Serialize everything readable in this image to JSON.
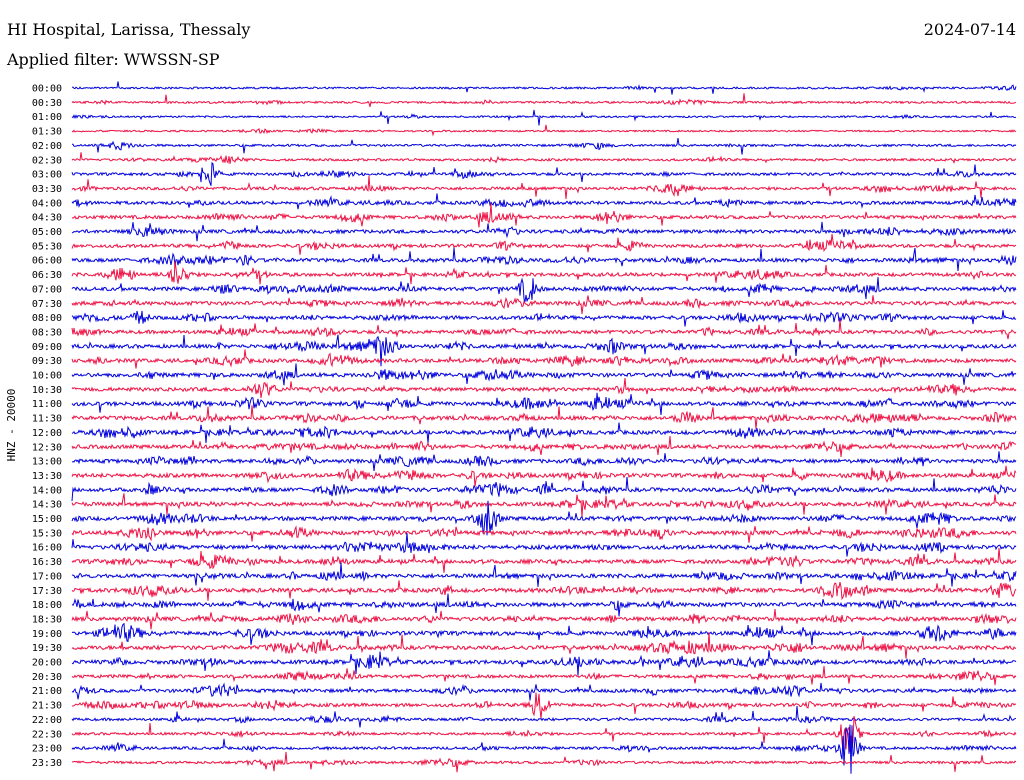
{
  "header": {
    "station": "HI Hospital, Larissa, Thessaly",
    "date": "2024-07-14",
    "filter_line": "Applied filter: WWSSN-SP"
  },
  "chart_data": {
    "type": "line",
    "title": "HI Hospital, Larissa, Thessaly",
    "ylabel": "HNZ - 20000",
    "xlabel": "",
    "trace_labels": [
      "00:00",
      "00:30",
      "01:00",
      "01:30",
      "02:00",
      "02:30",
      "03:00",
      "03:30",
      "04:00",
      "04:30",
      "05:00",
      "05:30",
      "06:00",
      "06:30",
      "07:00",
      "07:30",
      "08:00",
      "08:30",
      "09:00",
      "09:30",
      "10:00",
      "10:30",
      "11:00",
      "11:30",
      "12:00",
      "12:30",
      "13:00",
      "13:30",
      "14:00",
      "14:30",
      "15:00",
      "15:30",
      "16:00",
      "16:30",
      "17:00",
      "17:30",
      "18:00",
      "18:30",
      "19:00",
      "19:30",
      "20:00",
      "20:30",
      "21:00",
      "21:30",
      "22:00",
      "22:30",
      "23:00",
      "23:30"
    ],
    "trace_colors": [
      "#0000dd",
      "#ee1144"
    ],
    "activity_level": [
      0.25,
      0.3,
      0.2,
      0.15,
      0.35,
      0.4,
      0.55,
      0.6,
      0.7,
      0.75,
      0.8,
      0.75,
      0.85,
      0.8,
      0.85,
      0.9,
      0.85,
      0.8,
      0.85,
      0.9,
      0.9,
      0.9,
      0.95,
      0.95,
      0.95,
      0.9,
      0.9,
      0.95,
      0.95,
      0.9,
      0.95,
      1.0,
      1.0,
      0.95,
      0.95,
      1.0,
      1.0,
      0.95,
      0.95,
      0.95,
      0.95,
      0.7,
      0.75,
      0.75,
      0.5,
      0.45,
      0.5,
      0.45
    ],
    "events": [
      {
        "trace": "22:30",
        "x_frac": 0.823,
        "amp": 1.0
      },
      {
        "trace": "23:00",
        "x_frac": 0.823,
        "amp": 1.0
      },
      {
        "trace": "21:30",
        "x_frac": 0.495,
        "amp": 0.6
      },
      {
        "trace": "07:00",
        "x_frac": 0.483,
        "amp": 0.5
      },
      {
        "trace": "06:30",
        "x_frac": 0.111,
        "amp": 0.45
      },
      {
        "trace": "15:00",
        "x_frac": 0.44,
        "amp": 0.5
      },
      {
        "trace": "03:00",
        "x_frac": 0.144,
        "amp": 0.5
      }
    ]
  }
}
